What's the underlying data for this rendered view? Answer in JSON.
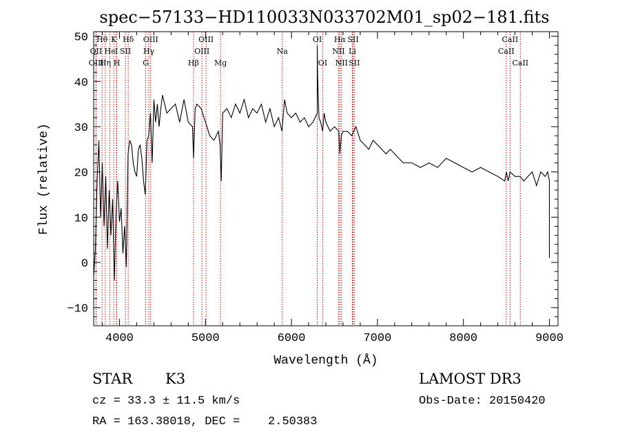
{
  "chart_data": {
    "type": "line",
    "title": "spec−57133−HD110033N033702M01_sp02−181.fits",
    "xlabel": "Wavelength (Å)",
    "ylabel": "Flux (relative)",
    "xlim": [
      3700,
      9100
    ],
    "ylim": [
      -14,
      51
    ],
    "xticks": [
      4000,
      5000,
      6000,
      7000,
      8000,
      9000
    ],
    "yticks": [
      -10,
      0,
      10,
      20,
      30,
      40,
      50
    ],
    "grid": false,
    "series": [
      {
        "name": "spectrum",
        "x": [
          3700,
          3720,
          3740,
          3760,
          3780,
          3800,
          3820,
          3840,
          3860,
          3880,
          3900,
          3920,
          3940,
          3960,
          3980,
          4000,
          4020,
          4040,
          4060,
          4080,
          4100,
          4120,
          4140,
          4160,
          4180,
          4200,
          4220,
          4240,
          4260,
          4280,
          4300,
          4320,
          4340,
          4360,
          4380,
          4400,
          4420,
          4440,
          4460,
          4480,
          4500,
          4550,
          4600,
          4650,
          4700,
          4750,
          4800,
          4850,
          4861,
          4880,
          4900,
          4950,
          5000,
          5050,
          5100,
          5150,
          5170,
          5184,
          5200,
          5250,
          5300,
          5350,
          5400,
          5450,
          5500,
          5550,
          5600,
          5650,
          5700,
          5750,
          5800,
          5850,
          5890,
          5920,
          5950,
          6000,
          6050,
          6100,
          6150,
          6200,
          6250,
          6300,
          6300,
          6305,
          6320,
          6340,
          6363,
          6380,
          6400,
          6450,
          6500,
          6550,
          6563,
          6580,
          6600,
          6650,
          6700,
          6750,
          6800,
          6850,
          6900,
          6950,
          7000,
          7050,
          7100,
          7150,
          7200,
          7250,
          7300,
          7400,
          7500,
          7600,
          7700,
          7800,
          7900,
          8000,
          8100,
          8200,
          8300,
          8400,
          8480,
          8500,
          8520,
          8542,
          8600,
          8662,
          8700,
          8750,
          8800,
          8850,
          8900,
          8950,
          8980,
          9000,
          9000
        ],
        "y": [
          -3,
          3,
          18,
          27,
          10,
          22,
          8,
          19,
          3,
          16,
          6,
          14,
          -4,
          11,
          18,
          9,
          12,
          2,
          8,
          -1,
          24,
          27,
          26,
          22,
          20,
          19,
          25,
          26,
          23,
          18,
          15,
          27,
          28,
          33,
          22,
          36,
          31,
          35,
          30,
          34,
          37,
          33,
          34,
          35,
          31,
          36,
          31,
          30,
          23,
          34,
          35,
          34,
          31,
          28,
          27,
          29,
          26,
          18,
          33,
          34,
          32,
          35,
          33,
          36,
          32,
          34,
          33,
          35,
          31,
          34,
          30,
          32,
          29,
          36,
          33,
          32,
          33,
          31,
          32,
          30,
          31,
          33,
          48,
          41,
          32,
          31,
          29,
          33,
          31,
          29,
          30,
          29,
          24,
          28,
          29,
          29,
          28,
          30,
          27,
          26,
          25,
          27,
          26,
          25,
          24,
          25,
          24,
          23,
          22,
          22,
          21,
          22,
          21,
          23,
          22,
          21,
          20,
          21,
          20,
          19,
          18,
          20,
          18,
          20,
          19,
          19,
          18,
          19,
          20,
          17,
          20,
          19,
          20,
          18,
          1
        ],
        "stroke": "#000000"
      }
    ],
    "line_markers": [
      {
        "label": "Hθ",
        "x": 3797,
        "row": 1
      },
      {
        "label": "OII",
        "x": 3727,
        "row": 2
      },
      {
        "label": "OIII",
        "x": 3729,
        "row": 3
      },
      {
        "label": "Hη",
        "x": 3835,
        "row": 3
      },
      {
        "label": "He",
        "x": 3889,
        "row": 2
      },
      {
        "label": "K",
        "x": 3934,
        "row": 1
      },
      {
        "label": "I",
        "x": 3965,
        "row": 2
      },
      {
        "label": "H",
        "x": 3969,
        "row": 3
      },
      {
        "label": "SII",
        "x": 4069,
        "row": 2
      },
      {
        "label": "Hδ",
        "x": 4102,
        "row": 1
      },
      {
        "label": "OIII",
        "x": 4363,
        "row": 1
      },
      {
        "label": "Hγ",
        "x": 4341,
        "row": 2
      },
      {
        "label": "G",
        "x": 4305,
        "row": 3
      },
      {
        "label": "Hβ",
        "x": 4861,
        "row": 3
      },
      {
        "label": "OIII",
        "x": 5007,
        "row": 1
      },
      {
        "label": "OIII",
        "x": 4959,
        "row": 2
      },
      {
        "label": "Mg",
        "x": 5175,
        "row": 3
      },
      {
        "label": "Na",
        "x": 5893,
        "row": 2
      },
      {
        "label": "OI",
        "x": 6300,
        "row": 1
      },
      {
        "label": "OI",
        "x": 6363,
        "row": 3
      },
      {
        "label": "Hα",
        "x": 6563,
        "row": 1
      },
      {
        "label": "NII",
        "x": 6548,
        "row": 2
      },
      {
        "label": "NII",
        "x": 6583,
        "row": 3
      },
      {
        "label": "SII",
        "x": 6717,
        "row": 1
      },
      {
        "label": "Li",
        "x": 6708,
        "row": 2
      },
      {
        "label": "SII",
        "x": 6731,
        "row": 3
      },
      {
        "label": "CaII",
        "x": 8542,
        "row": 1
      },
      {
        "label": "CaII",
        "x": 8498,
        "row": 2
      },
      {
        "label": "CaII",
        "x": 8662,
        "row": 3
      }
    ],
    "marker_color": "#cc0000",
    "axis_color": "#000000"
  },
  "info": {
    "object_class": "STAR",
    "subclass": "K3",
    "survey": "LAMOST DR3",
    "velocity": "cz = 33.3 ± 11.5 km/s",
    "obs_date": "Obs-Date: 20150420",
    "coords": "RA = 163.38018, DEC =    2.50383"
  }
}
